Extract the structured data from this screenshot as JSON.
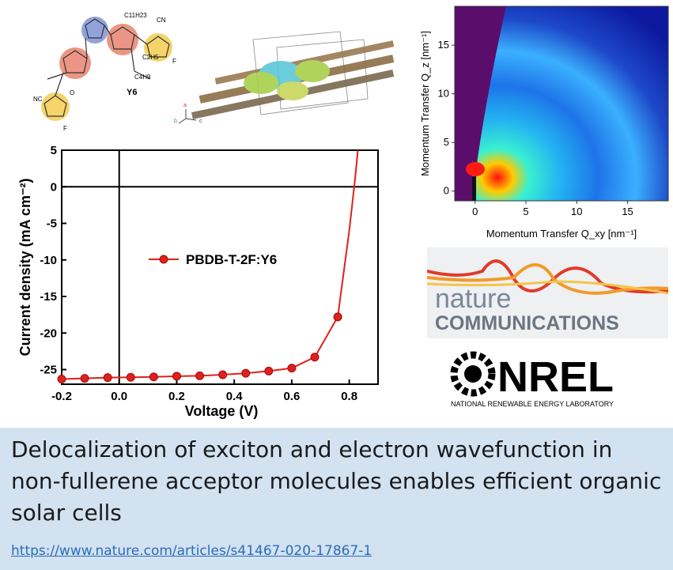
{
  "molecule": {
    "name": "Y6",
    "substituents": [
      "C11H23",
      "C4H9",
      "C2H5",
      "NC",
      "CN",
      "F",
      "F",
      "O"
    ]
  },
  "crystal": {
    "axis_labels": [
      "a",
      "b",
      "c"
    ]
  },
  "chart_data": [
    {
      "type": "line",
      "legend": [
        "PBDB-T-2F:Y6"
      ],
      "xlabel": "Voltage (V)",
      "ylabel": "Current density (mA cm⁻²)",
      "xlim": [
        -0.2,
        0.9
      ],
      "ylim": [
        -27,
        5
      ],
      "xticks": [
        -0.2,
        0.0,
        0.2,
        0.4,
        0.6,
        0.8
      ],
      "xtick_labels": [
        "-0.2",
        "0.0",
        "0.2",
        "0.4",
        "0.6",
        "0.8"
      ],
      "yticks": [
        5,
        0,
        -5,
        -10,
        -15,
        -20,
        -25
      ],
      "ytick_labels": [
        "5",
        "0",
        "-5",
        "-10",
        "-15",
        "-20",
        "-25"
      ],
      "series": [
        {
          "name": "PBDB-T-2F:Y6",
          "color": "#e0201b",
          "x": [
            -0.2,
            -0.12,
            -0.04,
            0.04,
            0.12,
            0.2,
            0.28,
            0.36,
            0.44,
            0.52,
            0.6,
            0.68,
            0.76,
            0.8,
            0.82,
            0.83
          ],
          "y": [
            -26.3,
            -26.2,
            -26.1,
            -26.05,
            -26.0,
            -25.9,
            -25.85,
            -25.7,
            -25.5,
            -25.2,
            -24.8,
            -23.3,
            -17.8,
            -6.0,
            1.0,
            5.0
          ],
          "marker_x": [
            -0.2,
            -0.12,
            -0.04,
            0.04,
            0.12,
            0.2,
            0.28,
            0.36,
            0.44,
            0.52,
            0.6,
            0.68,
            0.76
          ],
          "marker_y": [
            -26.3,
            -26.2,
            -26.1,
            -26.05,
            -26.0,
            -25.9,
            -25.85,
            -25.7,
            -25.5,
            -25.2,
            -24.8,
            -23.3,
            -17.8
          ]
        }
      ]
    },
    {
      "type": "heatmap",
      "xlabel": "Momentum Transfer Q_xy [nm⁻¹]",
      "ylabel": "Momentum Transfer Q_z [nm⁻¹]",
      "xlim": [
        -2,
        19
      ],
      "ylim": [
        -1,
        19
      ],
      "xticks": [
        0,
        5,
        10,
        15
      ],
      "xtick_labels": [
        "0",
        "5",
        "10",
        "15"
      ],
      "yticks": [
        0,
        5,
        10,
        15
      ],
      "ytick_labels": [
        "0",
        "5",
        "10",
        "15"
      ],
      "colormap": "jet"
    }
  ],
  "logos": {
    "nature_line1": "nature",
    "nature_line2": "COMMUNICATIONS",
    "nrel_name": "NREL",
    "nrel_sub": "NATIONAL RENEWABLE ENERGY LABORATORY"
  },
  "caption": {
    "title": "Delocalization of exciton and electron wavefunction in non-fullerene acceptor molecules enables efficient organic solar cells",
    "link": "https://www.nature.com/articles/s41467-020-17867-1"
  }
}
